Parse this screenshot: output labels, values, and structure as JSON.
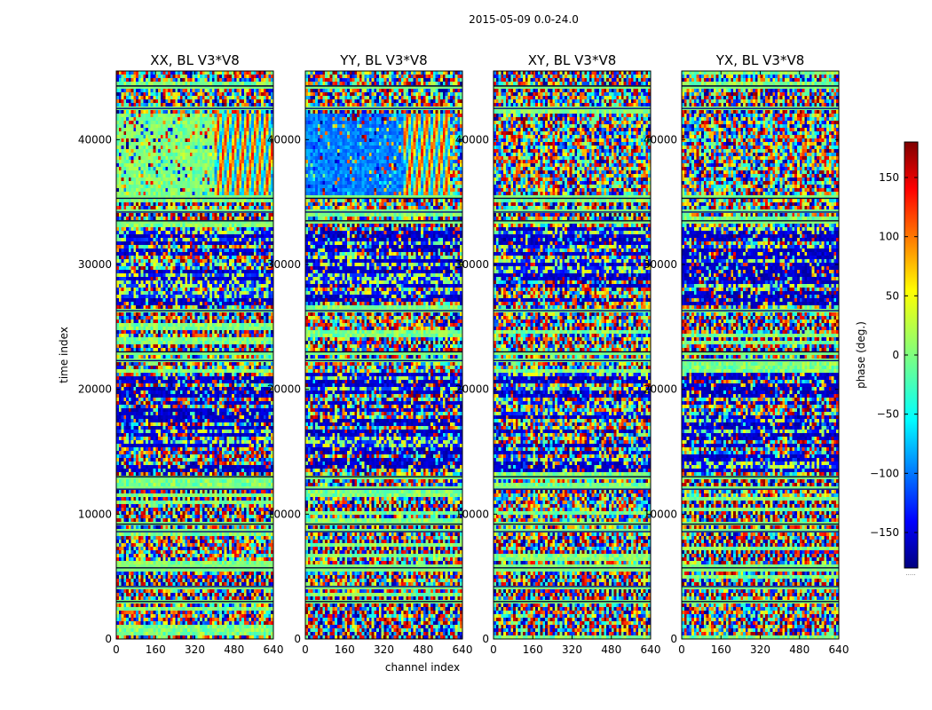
{
  "chart_data": {
    "type": "heatmap",
    "suptitle": "2015-05-09 0.0-24.0",
    "xlabel": "channel index",
    "ylabel": "time index",
    "xlim": [
      0,
      640
    ],
    "ylim": [
      0,
      45500
    ],
    "xticks": [
      0,
      160,
      320,
      480,
      640
    ],
    "yticks": [
      0,
      10000,
      20000,
      30000,
      40000
    ],
    "panels": [
      {
        "title": "XX, BL V3*V8",
        "pol": "XX"
      },
      {
        "title": "YY, BL V3*V8",
        "pol": "YY"
      },
      {
        "title": "XY, BL V3*V8",
        "pol": "XY"
      },
      {
        "title": "YX, BL V3*V8",
        "pol": "YX"
      }
    ],
    "colorbar": {
      "label": "phase (deg.)",
      "range": [
        -180,
        180
      ],
      "ticks": [
        150,
        100,
        50,
        0,
        -50,
        -100,
        -150
      ],
      "tick_labels": [
        "150",
        "100",
        "50",
        "0",
        "−50",
        "−100",
        "−150"
      ],
      "colormap": "jet",
      "footer": "....."
    },
    "features": {
      "low_noise_block_time": [
        35500,
        42200
      ],
      "low_noise_block_channels_xx": [
        0,
        400
      ],
      "low_noise_block_channels_yy": [
        0,
        400
      ],
      "dark_band_times": [
        [
          13500,
          21200
        ],
        [
          26800,
          33000
        ]
      ],
      "flag_line_times": [
        3000,
        4200,
        5700,
        8600,
        9200,
        12000,
        13000,
        22300,
        23000,
        26300,
        33500,
        34200,
        35300,
        42500,
        44300
      ]
    }
  }
}
